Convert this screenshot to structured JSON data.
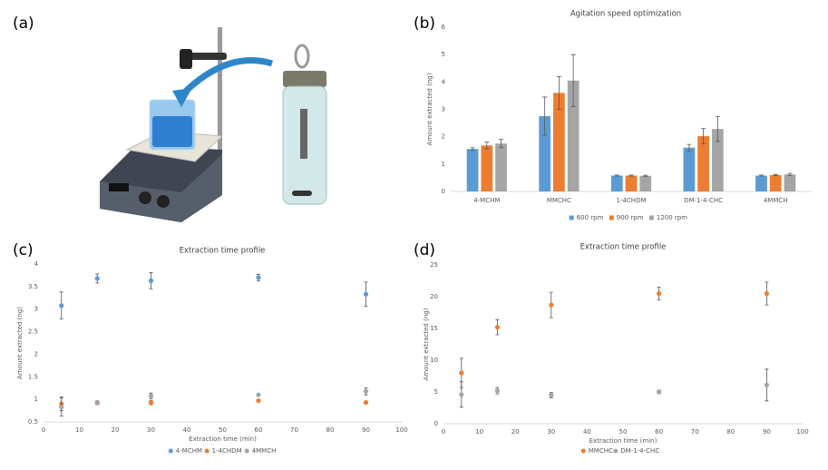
{
  "figure_labels": [
    "(a)",
    "(b)",
    "(c)",
    "(d)"
  ],
  "chart_data": [
    {
      "type": "bar",
      "title": "Agitation speed optimization",
      "y_label": "Amount extracted (ng)",
      "categories": [
        "4-MCHM",
        "MMCHC",
        "1-4CHDM",
        "DM-1-4-CHC",
        "4MMCH"
      ],
      "series": [
        {
          "name": "600 rpm",
          "color": "#5b9bd5",
          "values": [
            1.55,
            2.75,
            0.58,
            1.6,
            0.58
          ],
          "errors": [
            0.05,
            0.7,
            0.02,
            0.12,
            0.02
          ]
        },
        {
          "name": "900 rpm",
          "color": "#ed7d31",
          "values": [
            1.68,
            3.6,
            0.58,
            2.02,
            0.6
          ],
          "errors": [
            0.12,
            0.6,
            0.02,
            0.28,
            0.02
          ]
        },
        {
          "name": "1200 rpm",
          "color": "#a5a5a5",
          "values": [
            1.75,
            4.05,
            0.57,
            2.28,
            0.62
          ],
          "errors": [
            0.15,
            0.95,
            0.02,
            0.45,
            0.04
          ]
        }
      ],
      "ylim": [
        0,
        6
      ],
      "yticks": [
        0,
        1,
        2,
        3,
        4,
        5,
        6
      ],
      "grid": false,
      "legend": "bottom"
    },
    {
      "type": "scatter",
      "title": "Extraction time profile",
      "x_label": "Extraction time (min)",
      "y_label": "Amount extracted (ng)",
      "x": [
        5,
        15,
        30,
        60,
        90
      ],
      "series": [
        {
          "name": "4-MCHM",
          "color": "#5b9bd5",
          "values": [
            3.08,
            3.68,
            3.63,
            3.7,
            3.33
          ],
          "errors": [
            0.3,
            0.1,
            0.18,
            0.07,
            0.27
          ]
        },
        {
          "name": "1-4CHDM",
          "color": "#ed7d31",
          "values": [
            0.9,
            0.92,
            0.93,
            0.97,
            0.93
          ],
          "errors": [
            0.15,
            0.03,
            0.05,
            0.02,
            0.03
          ]
        },
        {
          "name": "4MMCH",
          "color": "#a5a5a5",
          "values": [
            0.83,
            0.93,
            1.08,
            1.1,
            1.18
          ],
          "errors": [
            0.2,
            0.04,
            0.06,
            0.02,
            0.08
          ]
        }
      ],
      "xlim": [
        0,
        100
      ],
      "xticks": [
        0,
        10,
        20,
        30,
        40,
        50,
        60,
        70,
        80,
        90,
        100
      ],
      "ylim": [
        0.5,
        4
      ],
      "yticks": [
        0.5,
        1,
        1.5,
        2,
        2.5,
        3,
        3.5,
        4
      ],
      "grid": false,
      "legend": "bottom"
    },
    {
      "type": "scatter",
      "title": "Extraction time profile",
      "x_label": "Extraction time (min)",
      "y_label": "Amount extracted (ng)",
      "x": [
        5,
        15,
        30,
        60,
        90
      ],
      "series": [
        {
          "name": "MMCHC",
          "color": "#ed7d31",
          "values": [
            8,
            15.2,
            18.7,
            20.5,
            20.5
          ],
          "errors": [
            2.3,
            1.2,
            2.0,
            1.0,
            1.8
          ]
        },
        {
          "name": "DM-1-4-CHC",
          "color": "#a5a5a5",
          "values": [
            4.6,
            5.2,
            4.5,
            5.0,
            6.1
          ],
          "errors": [
            2.0,
            0.5,
            0.4,
            0.3,
            2.5
          ]
        }
      ],
      "xlim": [
        0,
        100
      ],
      "xticks": [
        0,
        10,
        20,
        30,
        40,
        50,
        60,
        70,
        80,
        90,
        100
      ],
      "ylim": [
        0,
        25
      ],
      "yticks": [
        0,
        5,
        10,
        15,
        20,
        25
      ],
      "grid": false,
      "legend": "bottom"
    }
  ]
}
